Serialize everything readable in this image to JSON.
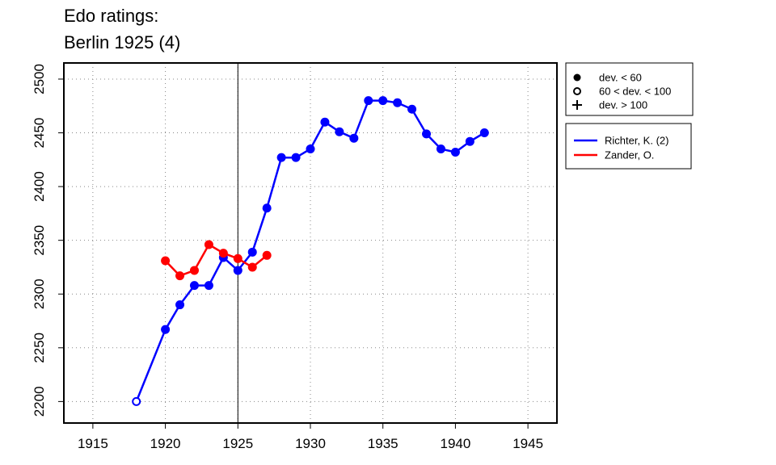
{
  "title": [
    "Edo ratings:",
    "Berlin 1925 (4)"
  ],
  "chart_data": {
    "type": "line",
    "xlim": [
      1913,
      1947
    ],
    "ylim": [
      2180,
      2515
    ],
    "x_ticks": [
      1915,
      1920,
      1925,
      1930,
      1935,
      1940,
      1945
    ],
    "y_ticks": [
      2200,
      2250,
      2300,
      2350,
      2400,
      2450,
      2500
    ],
    "grid": true,
    "reference_line_x": 1925,
    "deviation_legend": [
      {
        "symbol": "filled-circle",
        "label": "dev. < 60"
      },
      {
        "symbol": "open-circle",
        "label": "60 < dev. < 100"
      },
      {
        "symbol": "plus",
        "label": "dev. > 100"
      }
    ],
    "series": [
      {
        "name": "Richter, K. (2)",
        "color": "#0000ff",
        "points": [
          {
            "x": 1918,
            "y": 2200,
            "marker": "open"
          },
          {
            "x": 1920,
            "y": 2267,
            "marker": "filled"
          },
          {
            "x": 1921,
            "y": 2290,
            "marker": "filled"
          },
          {
            "x": 1922,
            "y": 2308,
            "marker": "filled"
          },
          {
            "x": 1923,
            "y": 2308,
            "marker": "filled"
          },
          {
            "x": 1924,
            "y": 2334,
            "marker": "filled"
          },
          {
            "x": 1925,
            "y": 2322,
            "marker": "filled"
          },
          {
            "x": 1926,
            "y": 2339,
            "marker": "filled"
          },
          {
            "x": 1927,
            "y": 2380,
            "marker": "filled"
          },
          {
            "x": 1928,
            "y": 2427,
            "marker": "filled"
          },
          {
            "x": 1929,
            "y": 2427,
            "marker": "filled"
          },
          {
            "x": 1930,
            "y": 2435,
            "marker": "filled"
          },
          {
            "x": 1931,
            "y": 2460,
            "marker": "filled"
          },
          {
            "x": 1932,
            "y": 2451,
            "marker": "filled"
          },
          {
            "x": 1933,
            "y": 2445,
            "marker": "filled"
          },
          {
            "x": 1934,
            "y": 2480,
            "marker": "filled"
          },
          {
            "x": 1935,
            "y": 2480,
            "marker": "filled"
          },
          {
            "x": 1936,
            "y": 2478,
            "marker": "filled"
          },
          {
            "x": 1937,
            "y": 2472,
            "marker": "filled"
          },
          {
            "x": 1938,
            "y": 2449,
            "marker": "filled"
          },
          {
            "x": 1939,
            "y": 2435,
            "marker": "filled"
          },
          {
            "x": 1940,
            "y": 2432,
            "marker": "filled"
          },
          {
            "x": 1941,
            "y": 2442,
            "marker": "filled"
          },
          {
            "x": 1942,
            "y": 2450,
            "marker": "filled"
          }
        ]
      },
      {
        "name": "Zander, O.",
        "color": "#ff0000",
        "points": [
          {
            "x": 1920,
            "y": 2331,
            "marker": "filled"
          },
          {
            "x": 1921,
            "y": 2317,
            "marker": "filled"
          },
          {
            "x": 1922,
            "y": 2322,
            "marker": "filled"
          },
          {
            "x": 1923,
            "y": 2346,
            "marker": "filled"
          },
          {
            "x": 1924,
            "y": 2338,
            "marker": "filled"
          },
          {
            "x": 1925,
            "y": 2333,
            "marker": "filled"
          },
          {
            "x": 1926,
            "y": 2325,
            "marker": "filled"
          },
          {
            "x": 1927,
            "y": 2336,
            "marker": "filled"
          }
        ]
      }
    ]
  }
}
